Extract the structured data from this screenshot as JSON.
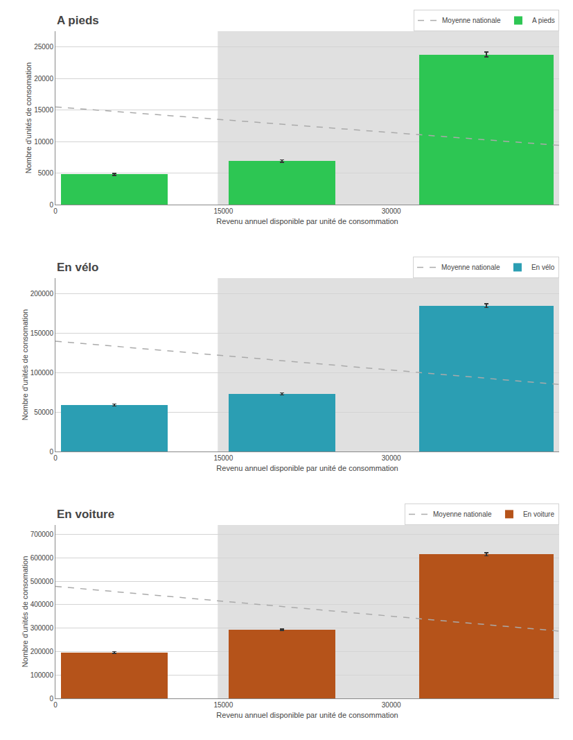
{
  "chart_data": [
    {
      "type": "bar",
      "title": "A pieds",
      "xlabel": "Revenu annuel disponible par unité de consommation",
      "ylabel": "Nombre d'unités de consomation",
      "x": [
        5250,
        20250,
        38500
      ],
      "widths": [
        9500,
        9500,
        12000
      ],
      "series": [
        {
          "name": "Moyenne nationale",
          "type": "line",
          "line_style": "dashed",
          "color": "#AAAAAA",
          "x": [
            0,
            45000
          ],
          "values": [
            15500,
            9400
          ]
        },
        {
          "name": "A pieds",
          "type": "bar",
          "color": "#2DC653",
          "values": [
            4800,
            6900,
            23800
          ],
          "errors": [
            180,
            180,
            380
          ]
        }
      ],
      "shade": {
        "from": 14500,
        "color": "#E0E0E0"
      },
      "xlim": [
        0,
        45000
      ],
      "xticks": [
        0,
        15000,
        30000
      ],
      "ylim": [
        0,
        27500
      ],
      "yticks": [
        0,
        5000,
        10000,
        15000,
        20000,
        25000
      ],
      "grid": "y",
      "legend": "upper right"
    },
    {
      "type": "bar",
      "title": "En vélo",
      "xlabel": "Revenu annuel disponible par unité de consommation",
      "ylabel": "Nombre d'unités de consomation",
      "x": [
        5250,
        20250,
        38500
      ],
      "widths": [
        9500,
        9500,
        12000
      ],
      "series": [
        {
          "name": "Moyenne nationale",
          "type": "line",
          "line_style": "dashed",
          "color": "#AAAAAA",
          "x": [
            0,
            45000
          ],
          "values": [
            140000,
            85000
          ]
        },
        {
          "name": "En vélo",
          "type": "bar",
          "color": "#2B9EB3",
          "values": [
            59000,
            73000,
            185000
          ],
          "errors": [
            1200,
            1200,
            2500
          ]
        }
      ],
      "shade": {
        "from": 14500,
        "color": "#E0E0E0"
      },
      "xlim": [
        0,
        45000
      ],
      "xticks": [
        0,
        15000,
        30000
      ],
      "ylim": [
        0,
        220000
      ],
      "yticks": [
        0,
        50000,
        100000,
        150000,
        200000
      ],
      "grid": "y",
      "legend": "upper right"
    },
    {
      "type": "bar",
      "title": "En voiture",
      "xlabel": "Revenu annuel disponible par unité de consommation",
      "ylabel": "Nombre d'unités de consomation",
      "x": [
        5250,
        20250,
        38500
      ],
      "widths": [
        9500,
        9500,
        12000
      ],
      "series": [
        {
          "name": "Moyenne nationale",
          "type": "line",
          "line_style": "dashed",
          "color": "#AAAAAA",
          "x": [
            0,
            45000
          ],
          "values": [
            478000,
            287000
          ]
        },
        {
          "name": "En voiture",
          "type": "bar",
          "color": "#B5531A",
          "values": [
            196000,
            293000,
            615000
          ],
          "errors": [
            3500,
            3500,
            7000
          ]
        }
      ],
      "shade": {
        "from": 14500,
        "color": "#E0E0E0"
      },
      "xlim": [
        0,
        45000
      ],
      "xticks": [
        0,
        15000,
        30000
      ],
      "ylim": [
        0,
        740000
      ],
      "yticks": [
        0,
        100000,
        200000,
        300000,
        400000,
        500000,
        600000,
        700000
      ],
      "grid": "y",
      "legend": "upper right"
    }
  ]
}
